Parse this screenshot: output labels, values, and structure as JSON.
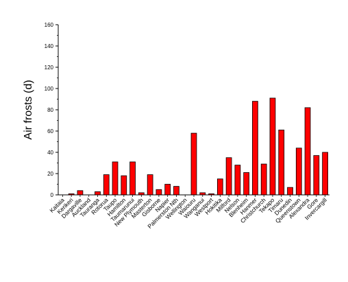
{
  "chart_data": {
    "type": "bar",
    "title": "",
    "xlabel": "",
    "ylabel": "Air frosts (d)",
    "ylim": [
      0,
      160
    ],
    "yticks": [
      0,
      20,
      40,
      60,
      80,
      100,
      120,
      140,
      160
    ],
    "grid": false,
    "legend": "none",
    "bar_color": "#ff0000",
    "categories": [
      "Kaitaia",
      "Kerikeri",
      "Dargaville",
      "Auckland",
      "Tauranga",
      "Rotorua",
      "Taupo",
      "Hamilton",
      "Taumarunui",
      "New Plymouth",
      "Masterton",
      "Gisborne",
      "Napier",
      "Palmerston Nth",
      "Wellington",
      "Waiouru",
      "Wanganui",
      "Westport",
      "Hokitika",
      "Milford",
      "Nelson",
      "Blenheim",
      "Hanmer",
      "Christchurch",
      "Tekapo",
      "Timaru",
      "Dunedin",
      "Queenstown",
      "Alexandra",
      "Gore",
      "Invercargill"
    ],
    "values": [
      0,
      1,
      4,
      0,
      3,
      19,
      31,
      18,
      31,
      2,
      19,
      5,
      10,
      8,
      0,
      58,
      2,
      1,
      15,
      35,
      28,
      21,
      88,
      29,
      91,
      61,
      7,
      44,
      82,
      37,
      40
    ]
  }
}
